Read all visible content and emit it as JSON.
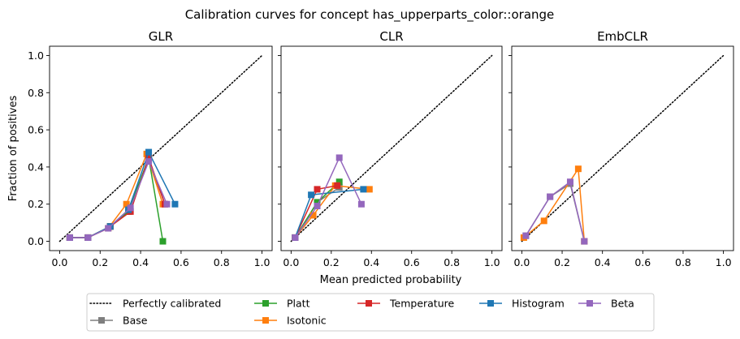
{
  "figure": {
    "suptitle": "Calibration curves for concept has_upperparts_color::orange",
    "xlabel": "Mean predicted probability",
    "ylabel": "Fraction of positives"
  },
  "legend": {
    "location": "bottom-center",
    "entries": [
      {
        "name": "Perfectly calibrated",
        "color": "#000000",
        "style": "dotted",
        "marker": "none"
      },
      {
        "name": "Base",
        "color": "#7f7f7f",
        "style": "solid",
        "marker": "square"
      },
      {
        "name": "Platt",
        "color": "#2ca02c",
        "style": "solid",
        "marker": "square"
      },
      {
        "name": "Isotonic",
        "color": "#ff7f0e",
        "style": "solid",
        "marker": "square"
      },
      {
        "name": "Temperature",
        "color": "#d62728",
        "style": "solid",
        "marker": "square"
      },
      {
        "name": "Histogram",
        "color": "#1f77b4",
        "style": "solid",
        "marker": "square"
      },
      {
        "name": "Beta",
        "color": "#9467bd",
        "style": "solid",
        "marker": "square"
      }
    ]
  },
  "chart_data": [
    {
      "type": "line",
      "title": "GLR",
      "xlim": [
        -0.05,
        1.05
      ],
      "ylim": [
        -0.05,
        1.05
      ],
      "xticks": [
        "0.0",
        "0.2",
        "0.4",
        "0.6",
        "0.8",
        "1.0"
      ],
      "yticks": [
        "0.0",
        "0.2",
        "0.4",
        "0.6",
        "0.8",
        "1.0"
      ],
      "grid": false,
      "series": [
        {
          "name": "Perfectly calibrated",
          "x": [
            0,
            1
          ],
          "y": [
            0,
            1
          ]
        },
        {
          "name": "Base",
          "x": [
            0.05,
            0.14,
            0.25,
            0.34,
            0.44,
            0.52
          ],
          "y": [
            0.02,
            0.02,
            0.08,
            0.17,
            0.44,
            0.2
          ]
        },
        {
          "name": "Platt",
          "x": [
            0.05,
            0.14,
            0.25,
            0.34,
            0.44,
            0.51
          ],
          "y": [
            0.02,
            0.02,
            0.08,
            0.16,
            0.45,
            0.0
          ]
        },
        {
          "name": "Isotonic",
          "x": [
            0.05,
            0.14,
            0.24,
            0.33,
            0.43,
            0.51
          ],
          "y": [
            0.02,
            0.02,
            0.07,
            0.2,
            0.47,
            0.2
          ]
        },
        {
          "name": "Temperature",
          "x": [
            0.05,
            0.14,
            0.25,
            0.35,
            0.44,
            0.52
          ],
          "y": [
            0.02,
            0.02,
            0.08,
            0.16,
            0.45,
            0.2
          ]
        },
        {
          "name": "Histogram",
          "x": [
            0.05,
            0.14,
            0.25,
            0.34,
            0.44,
            0.57
          ],
          "y": [
            0.02,
            0.02,
            0.08,
            0.17,
            0.48,
            0.2
          ]
        },
        {
          "name": "Beta",
          "x": [
            0.05,
            0.14,
            0.24,
            0.35,
            0.44,
            0.53
          ],
          "y": [
            0.02,
            0.02,
            0.07,
            0.18,
            0.43,
            0.2
          ]
        }
      ]
    },
    {
      "type": "line",
      "title": "CLR",
      "xlim": [
        -0.05,
        1.05
      ],
      "ylim": [
        -0.05,
        1.05
      ],
      "xticks": [
        "0.0",
        "0.2",
        "0.4",
        "0.6",
        "0.8",
        "1.0"
      ],
      "yticks": [],
      "grid": false,
      "series": [
        {
          "name": "Perfectly calibrated",
          "x": [
            0,
            1
          ],
          "y": [
            0,
            1
          ]
        },
        {
          "name": "Base",
          "x": [
            0.02,
            0.13,
            0.24
          ],
          "y": [
            0.02,
            0.21,
            0.29
          ]
        },
        {
          "name": "Platt",
          "x": [
            0.02,
            0.13,
            0.24
          ],
          "y": [
            0.02,
            0.21,
            0.32
          ]
        },
        {
          "name": "Isotonic",
          "x": [
            0.02,
            0.11,
            0.22,
            0.39
          ],
          "y": [
            0.02,
            0.14,
            0.3,
            0.28
          ]
        },
        {
          "name": "Temperature",
          "x": [
            0.02,
            0.13,
            0.23
          ],
          "y": [
            0.02,
            0.28,
            0.3
          ]
        },
        {
          "name": "Histogram",
          "x": [
            0.02,
            0.1,
            0.36
          ],
          "y": [
            0.02,
            0.25,
            0.28
          ]
        },
        {
          "name": "Beta",
          "x": [
            0.02,
            0.13,
            0.24,
            0.35
          ],
          "y": [
            0.02,
            0.19,
            0.45,
            0.2
          ]
        }
      ]
    },
    {
      "type": "line",
      "title": "EmbCLR",
      "xlim": [
        -0.05,
        1.05
      ],
      "ylim": [
        -0.05,
        1.05
      ],
      "xticks": [
        "0.0",
        "0.2",
        "0.4",
        "0.6",
        "0.8",
        "1.0"
      ],
      "yticks": [],
      "grid": false,
      "series": [
        {
          "name": "Perfectly calibrated",
          "x": [
            0,
            1
          ],
          "y": [
            0,
            1
          ]
        },
        {
          "name": "Base",
          "x": [
            0.02,
            0.14,
            0.24,
            0.31
          ],
          "y": [
            0.03,
            0.24,
            0.31,
            0.0
          ]
        },
        {
          "name": "Isotonic",
          "x": [
            0.01,
            0.11,
            0.28,
            0.31
          ],
          "y": [
            0.02,
            0.11,
            0.39,
            0.0
          ]
        },
        {
          "name": "Beta",
          "x": [
            0.02,
            0.14,
            0.24,
            0.31
          ],
          "y": [
            0.03,
            0.24,
            0.32,
            0.0
          ]
        }
      ]
    }
  ]
}
